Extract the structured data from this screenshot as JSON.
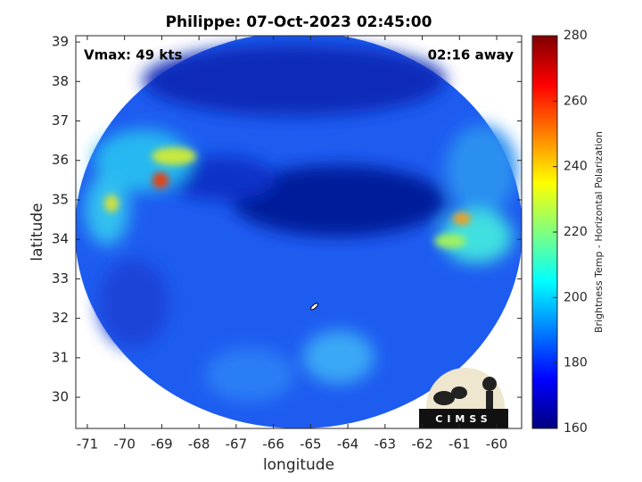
{
  "chart_data": {
    "type": "heatmap",
    "title": "Philippe: 07-Oct-2023 02:45:00",
    "annotations": [
      "Vmax: 49 kts",
      "02:16 away"
    ],
    "x_label": "longitude",
    "y_label": "latitude",
    "xlim": [
      -71.31,
      -59.33
    ],
    "ylim": [
      29.21,
      39.16
    ],
    "xticks": [
      -71,
      -70,
      -69,
      -68,
      -67,
      -66,
      -65,
      -64,
      -63,
      -62,
      -61,
      -60
    ],
    "yticks": [
      30,
      31,
      32,
      33,
      34,
      35,
      36,
      37,
      38,
      39
    ],
    "colorbar": {
      "label": "Brightness Temp - Horizontal Polarization",
      "colormap": "jet",
      "clim": [
        160,
        280
      ],
      "ticks": [
        160,
        180,
        200,
        220,
        240,
        260,
        280
      ]
    },
    "storm_center": {
      "x": -64.9,
      "y": 32.3
    },
    "logo": "CIMSS"
  }
}
